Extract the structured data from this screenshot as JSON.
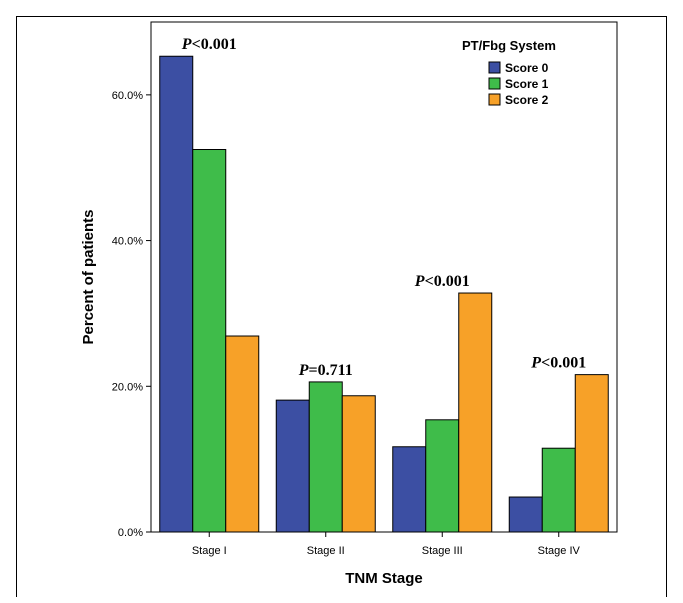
{
  "chart_data": {
    "type": "bar",
    "xlabel": "TNM Stage",
    "ylabel": "Percent of patients",
    "ylim": [
      0,
      70
    ],
    "yticks": [
      "0.0%",
      "20.0%",
      "40.0%",
      "60.0%"
    ],
    "ytick_values": [
      0,
      20,
      40,
      60
    ],
    "categories": [
      "Stage I",
      "Stage II",
      "Stage III",
      "Stage IV"
    ],
    "legend_title": "PT/Fbg System",
    "legend_position": "top-right",
    "series": [
      {
        "name": "Score 0",
        "color": "#3c4fa3",
        "values": [
          65.3,
          18.1,
          11.7,
          4.8
        ]
      },
      {
        "name": "Score 1",
        "color": "#3fbc4a",
        "values": [
          52.5,
          20.6,
          15.4,
          11.5
        ]
      },
      {
        "name": "Score 2",
        "color": "#f7a128",
        "values": [
          26.9,
          18.7,
          32.8,
          21.6
        ]
      }
    ],
    "annotations": [
      {
        "italic": "P",
        "text": "<0.001"
      },
      {
        "italic": "P",
        "text": "=0.711"
      },
      {
        "italic": "P",
        "text": "<0.001"
      },
      {
        "italic": "P",
        "text": "<0.001"
      }
    ]
  }
}
